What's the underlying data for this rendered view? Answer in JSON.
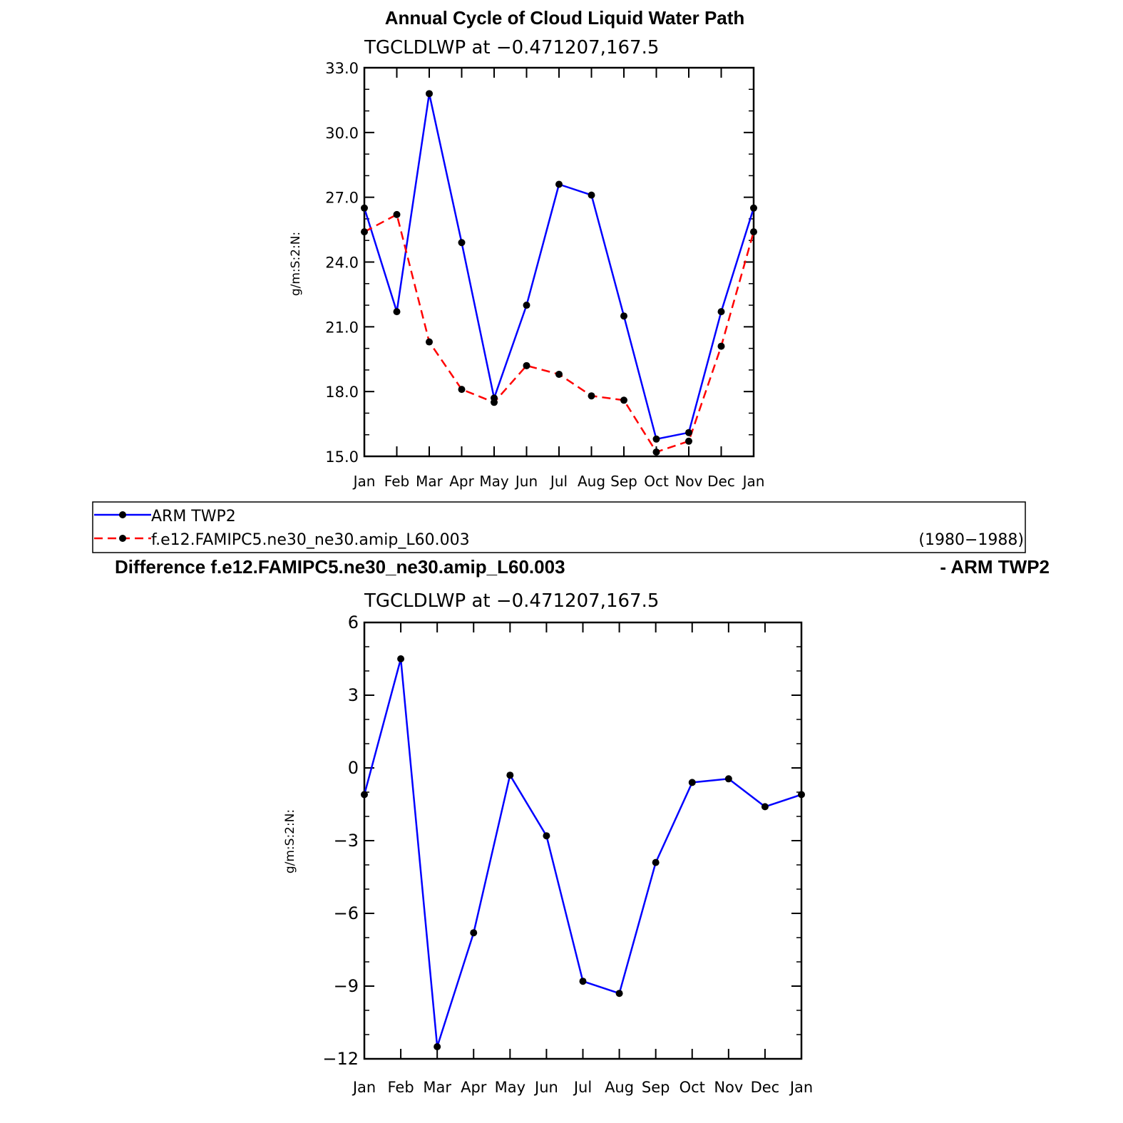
{
  "figure": {
    "title": "Annual Cycle of Cloud Liquid Water Path",
    "diff_title_left": "Difference f.e12.FAMIPC5.ne30_ne30.amip_L60.003",
    "diff_title_right": "- ARM TWP2"
  },
  "legend": {
    "items": [
      {
        "label": "ARM TWP2",
        "color": "#0000ff",
        "dash": false
      },
      {
        "label": "f.e12.FAMIPC5.ne30_ne30.amip_L60.003",
        "color": "#ff0000",
        "dash": true
      }
    ],
    "years": "(1980−1988)"
  },
  "chart_data": [
    {
      "type": "line",
      "title": "TGCLDLWP  at  −0.471207,167.5",
      "ylabel": "g/m:S:2:N:",
      "xlabel": "",
      "categories": [
        "Jan",
        "Feb",
        "Mar",
        "Apr",
        "May",
        "Jun",
        "Jul",
        "Aug",
        "Sep",
        "Oct",
        "Nov",
        "Dec",
        "Jan"
      ],
      "ylim": [
        15,
        33
      ],
      "yticks": [
        15,
        18,
        21,
        24,
        27,
        30,
        33
      ],
      "ytick_labels": [
        "15.0",
        "18.0",
        "21.0",
        "24.0",
        "27.0",
        "30.0",
        "33.0"
      ],
      "grid": false,
      "series": [
        {
          "name": "ARM TWP2",
          "color": "#0000ff",
          "dash": false,
          "values": [
            26.5,
            21.7,
            31.8,
            24.9,
            17.7,
            22.0,
            27.6,
            27.1,
            21.5,
            15.8,
            16.1,
            21.7,
            26.5
          ]
        },
        {
          "name": "f.e12.FAMIPC5.ne30_ne30.amip_L60.003",
          "color": "#ff0000",
          "dash": true,
          "values": [
            25.4,
            26.2,
            20.3,
            18.1,
            17.5,
            19.2,
            18.8,
            17.8,
            17.6,
            15.2,
            15.7,
            20.1,
            25.4
          ]
        }
      ]
    },
    {
      "type": "line",
      "title": "TGCLDLWP  at  −0.471207,167.5",
      "ylabel": "g/m:S:2:N:",
      "xlabel": "",
      "categories": [
        "Jan",
        "Feb",
        "Mar",
        "Apr",
        "May",
        "Jun",
        "Jul",
        "Aug",
        "Sep",
        "Oct",
        "Nov",
        "Dec",
        "Jan"
      ],
      "ylim": [
        -12,
        6
      ],
      "yticks": [
        -12,
        -9,
        -6,
        -3,
        0,
        3,
        6
      ],
      "ytick_labels": [
        "−12",
        "−9",
        "−6",
        "−3",
        "0",
        "3",
        "6"
      ],
      "grid": false,
      "series": [
        {
          "name": "",
          "color": "#0000ff",
          "dash": false,
          "values": [
            -1.1,
            4.5,
            -11.5,
            -6.8,
            -0.3,
            -2.8,
            -8.8,
            -9.3,
            -3.9,
            -0.6,
            -0.45,
            -1.6,
            -1.1
          ]
        }
      ]
    }
  ]
}
